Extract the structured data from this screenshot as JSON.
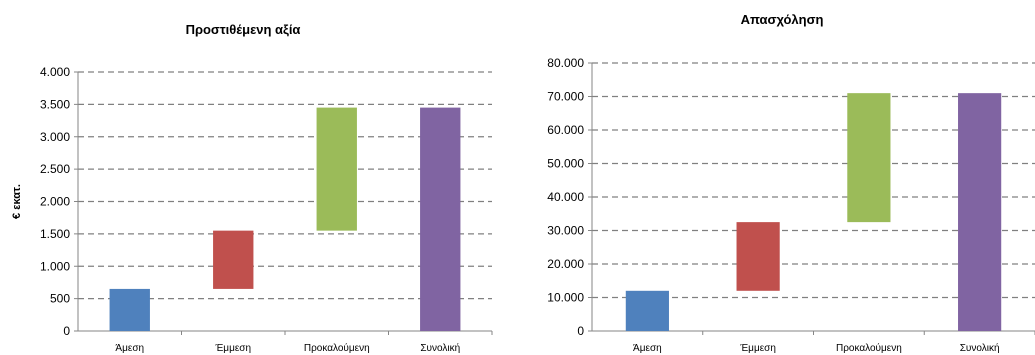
{
  "chart_data": [
    {
      "type": "bar",
      "subtype": "waterfall",
      "title": "Προστιθέμενη αξία",
      "ylabel": "€ εκατ.",
      "xlabel": "",
      "categories": [
        "Άμεση",
        "Έμμεση",
        "Προκαλούμενη",
        "Συνολική"
      ],
      "series": [
        {
          "base": [
            0,
            650,
            1550,
            0
          ],
          "values": [
            650,
            900,
            1900,
            3450
          ]
        }
      ],
      "colors": [
        "#4f81bd",
        "#c0504d",
        "#9bbb59",
        "#8064a2"
      ],
      "ylim": [
        0,
        4000
      ],
      "yticks": [
        0,
        500,
        1000,
        1500,
        2000,
        2500,
        3000,
        3500,
        4000
      ],
      "ytick_labels": [
        "0",
        "500",
        "1.000",
        "1.500",
        "2.000",
        "2.500",
        "3.000",
        "3.500",
        "4.000"
      ],
      "grid": true,
      "legend": "none"
    },
    {
      "type": "bar",
      "subtype": "waterfall",
      "title": "Απασχόληση",
      "ylabel": "",
      "xlabel": "",
      "categories": [
        "Άμεση",
        "Έμμεση",
        "Προκαλούμενη",
        "Συνολική"
      ],
      "series": [
        {
          "base": [
            0,
            12000,
            32500,
            0
          ],
          "values": [
            12000,
            20500,
            38500,
            71000
          ]
        }
      ],
      "colors": [
        "#4f81bd",
        "#c0504d",
        "#9bbb59",
        "#8064a2"
      ],
      "ylim": [
        0,
        80000
      ],
      "yticks": [
        0,
        10000,
        20000,
        30000,
        40000,
        50000,
        60000,
        70000,
        80000
      ],
      "ytick_labels": [
        "0",
        "10.000",
        "20.000",
        "30.000",
        "40.000",
        "50.000",
        "60.000",
        "70.000",
        "80.000"
      ],
      "grid": true,
      "legend": "none"
    }
  ]
}
